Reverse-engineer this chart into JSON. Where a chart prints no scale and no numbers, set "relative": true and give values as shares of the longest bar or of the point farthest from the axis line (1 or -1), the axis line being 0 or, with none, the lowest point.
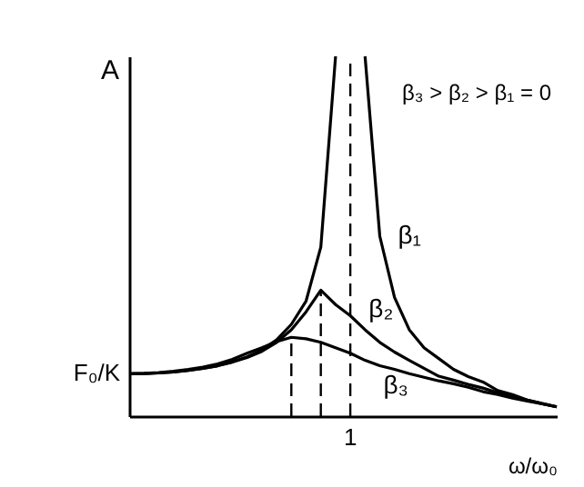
{
  "chart_data": {
    "type": "line",
    "relative": true,
    "xlabel": "ω/ω₀",
    "ylabel": "A",
    "marker": "none",
    "line_style": "solid",
    "categories": [
      null,
      null,
      null,
      null,
      null,
      null,
      null,
      null,
      null,
      null,
      null,
      null,
      null,
      null,
      null,
      null,
      null,
      null,
      null,
      null,
      null,
      null,
      null,
      null,
      null,
      null,
      null,
      null,
      null,
      null
    ],
    "annotations": [
      "β₃ > β₂ > β₁ = 0",
      "F₀/K",
      "1"
    ],
    "series": [
      {
        "name": "β₁",
        "color": "#000000",
        "values": [
          0.118,
          0.118,
          0.12,
          0.123,
          0.127,
          0.133,
          0.14,
          0.151,
          0.165,
          0.184,
          0.212,
          0.255,
          0.32,
          0.47,
          1,
          null,
          1,
          0.5,
          0.33,
          0.24,
          0.19,
          0.16,
          0.13,
          0.11,
          0.095,
          0.071,
          0.06,
          0.045,
          0.035,
          0.026
        ]
      },
      {
        "name": "β₂",
        "color": "#000000",
        "values": [
          0.118,
          0.118,
          0.12,
          0.123,
          0.127,
          0.133,
          0.14,
          0.15,
          0.163,
          0.18,
          0.205,
          0.24,
          0.29,
          0.35,
          0.31,
          0.279,
          0.24,
          0.205,
          0.178,
          0.155,
          0.133,
          0.111,
          0.1,
          0.088,
          0.078,
          0.065,
          0.055,
          0.045,
          0.035,
          0.026
        ]
      },
      {
        "name": "β₃",
        "color": "#000000",
        "values": [
          0.118,
          0.119,
          0.121,
          0.125,
          0.13,
          0.136,
          0.145,
          0.158,
          0.175,
          0.19,
          0.207,
          0.219,
          0.215,
          0.205,
          0.19,
          0.175,
          0.155,
          0.14,
          0.13,
          0.118,
          0.108,
          0.098,
          0.09,
          0.08,
          0.068,
          0.06,
          0.05,
          0.042,
          0.034,
          0.026
        ]
      }
    ]
  }
}
